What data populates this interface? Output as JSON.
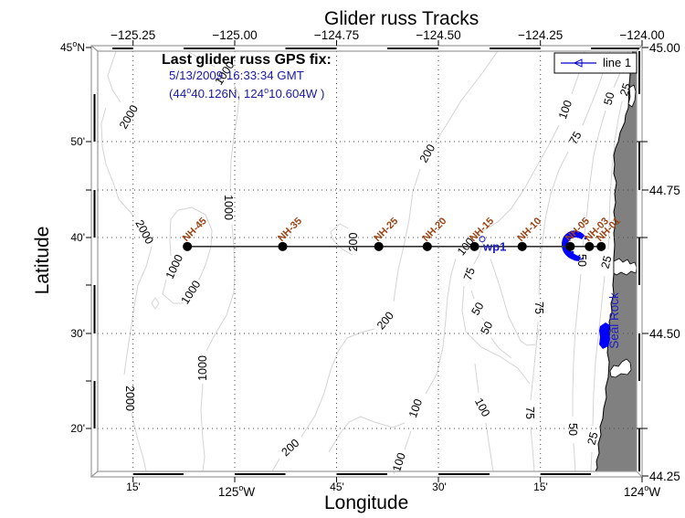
{
  "title": "Glider russ Tracks",
  "axes": {
    "xlabel": "Longitude",
    "ylabel": "Latitude",
    "top_ticks": [
      "−125.25",
      "−125.00",
      "−124.75",
      "−124.50",
      "−124.25",
      "−124.00"
    ],
    "right_ticks": [
      "45.00",
      "44.75",
      "44.50",
      "44.25"
    ],
    "left_ticks": [
      {
        "main": "45",
        "sup": "o",
        "tail": "N"
      },
      {
        "main": "50'"
      },
      {
        "main": "40'"
      },
      {
        "main": "30'"
      },
      {
        "main": "20'"
      }
    ],
    "bottom_ticks": [
      {
        "main": "15'"
      },
      {
        "main": "125",
        "sup": "o",
        "tail": "W"
      },
      {
        "main": "45'"
      },
      {
        "main": "30'"
      },
      {
        "main": "15'"
      },
      {
        "main": "124",
        "sup": "o",
        "tail": "W"
      }
    ]
  },
  "gps_fix": {
    "heading": "Last glider russ GPS fix:",
    "time": "5/13/2009 16:33:34 GMT",
    "position": [
      "(44",
      "o",
      "40.126N, 124",
      "o",
      "10.604W )"
    ]
  },
  "legend": {
    "label": "line 1",
    "marker": "triangle-left",
    "color": "#0000cc"
  },
  "map": {
    "extent": {
      "lon": [
        -125.337,
        -124.0
      ],
      "lat": [
        44.25,
        45.0
      ]
    },
    "stations": [
      {
        "name": "NH-45",
        "lon": -125.117,
        "lat": 44.652
      },
      {
        "name": "NH-35",
        "lon": -124.883,
        "lat": 44.652
      },
      {
        "name": "NH-25",
        "lon": -124.647,
        "lat": 44.652
      },
      {
        "name": "NH-20",
        "lon": -124.528,
        "lat": 44.652
      },
      {
        "name": "NH-15",
        "lon": -124.412,
        "lat": 44.652
      },
      {
        "name": "NH-10",
        "lon": -124.295,
        "lat": 44.652
      },
      {
        "name": "NH-05",
        "lon": -124.177,
        "lat": 44.652
      },
      {
        "name": "NH-03",
        "lon": -124.13,
        "lat": 44.652
      },
      {
        "name": "NH-01",
        "lon": -124.101,
        "lat": 44.652
      }
    ],
    "waypoint": {
      "name": "wp1",
      "lon": -124.393,
      "lat": 44.665
    },
    "landmark": "Seal Rock",
    "contour_labels": [
      "1000",
      "2000",
      "2000",
      "1000",
      "1000",
      "1000",
      "1000",
      "2000",
      "200",
      "100",
      "100",
      "100",
      "75",
      "50",
      "25",
      "200",
      "100",
      "75",
      "50",
      "25",
      "200",
      "100",
      "75",
      "50",
      "50",
      "75",
      "200",
      "50",
      "25"
    ]
  },
  "colors": {
    "station_label": "#9b4314",
    "station_marker": "#000000",
    "gps_text": "#1a1aa6",
    "glider_fix": "#0000ff",
    "waypoint": "#1c1cc4",
    "land": "#808080",
    "contour": "#d4d4d4"
  }
}
